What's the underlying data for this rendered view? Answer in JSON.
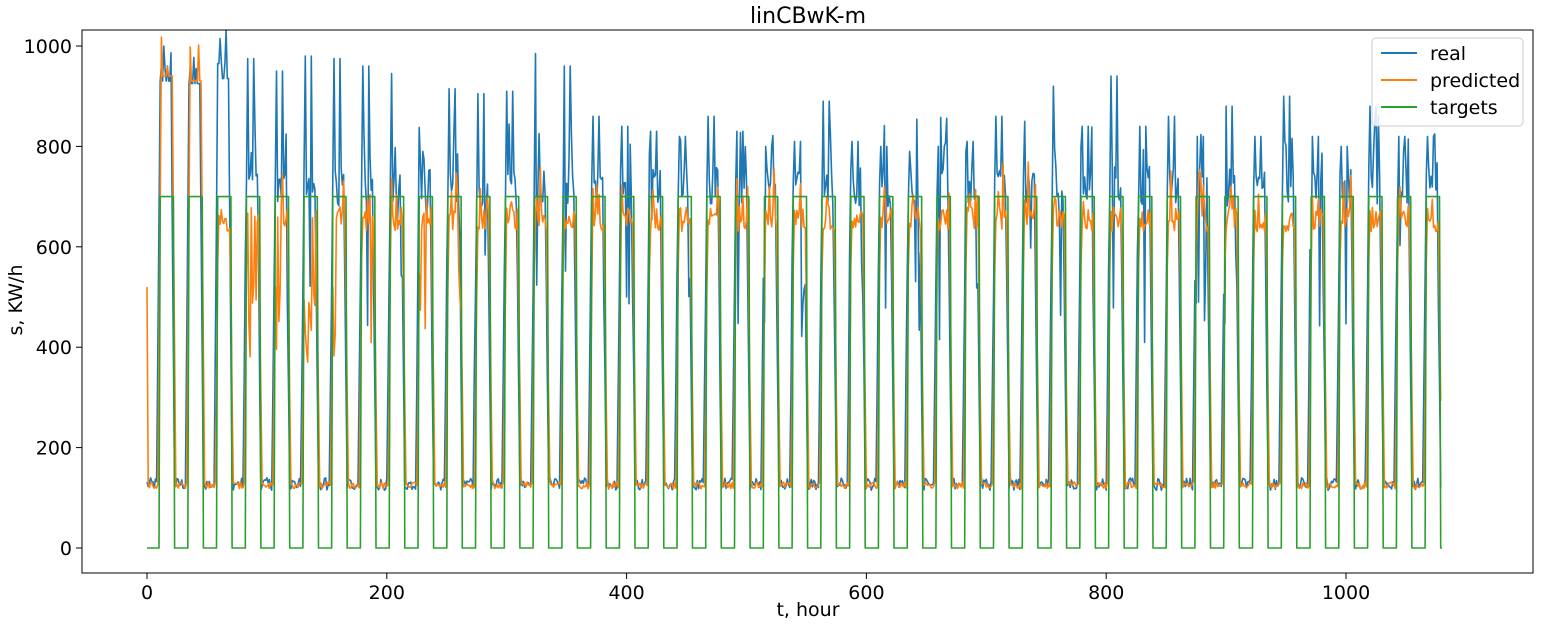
{
  "chart_data": {
    "type": "line",
    "title": "linCBwK-m",
    "xlabel": "t, hour",
    "ylabel": "s, KW/h",
    "xlim": [
      -90,
      1895
    ],
    "ylim": [
      -50,
      1030
    ],
    "x_ticks": [
      0,
      200,
      400,
      600,
      800,
      1000
    ],
    "y_ticks": [
      0,
      200,
      400,
      600,
      800,
      1000
    ],
    "grid": false,
    "legend_position": "top-right",
    "period_hours": 24,
    "num_days": 45,
    "x_range": [
      0,
      1080
    ],
    "series": [
      {
        "name": "real",
        "color": "#1f77b4",
        "pattern": "daily cycle: baseline ~120 at night, rising to peaks ~950 early then ~700-900 during day hours",
        "day_peaks": [
          960,
          955,
          965,
          975,
          950,
          980,
          975,
          960,
          945,
          940,
          915,
          905,
          910,
          985,
          960,
          860,
          840,
          830,
          820,
          860,
          830,
          800,
          810,
          890,
          810,
          800,
          790,
          800,
          810,
          860,
          850,
          920,
          840,
          940,
          840,
          860,
          820,
          880,
          820,
          900,
          820,
          800,
          880,
          820,
          820
        ]
      },
      {
        "name": "predicted",
        "color": "#ff7f0e",
        "pattern": "tracks real with lagged daily cycle, baseline ~120, day values ~620-800",
        "start_value": 520,
        "day_peaks": [
          960,
          950,
          790,
          780,
          720,
          680,
          720,
          800,
          790,
          760,
          720,
          690,
          700,
          780,
          780,
          710,
          770,
          760,
          770,
          720,
          780,
          720,
          780,
          770,
          780,
          770,
          780,
          790,
          770,
          760,
          780,
          770,
          790,
          770,
          780,
          780,
          790,
          790,
          790,
          790,
          790,
          790,
          790,
          790,
          790
        ]
      },
      {
        "name": "targets",
        "color": "#2ca02c",
        "pattern": "square wave: 700 for ~hours 10-22 of each day, 0 otherwise",
        "high": 700,
        "low": 0
      }
    ]
  }
}
